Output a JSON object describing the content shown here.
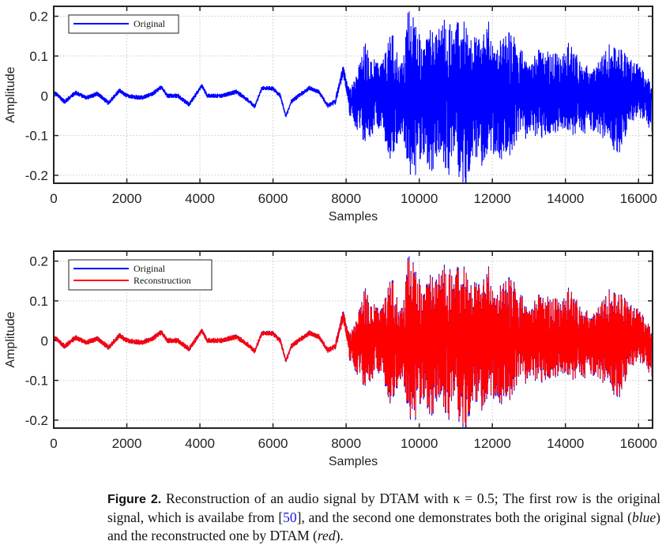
{
  "chart_data": [
    {
      "type": "line",
      "xlabel": "Samples",
      "ylabel": "Amplitude",
      "xlim": [
        0,
        16384
      ],
      "ylim": [
        -0.22,
        0.225
      ],
      "xticks": [
        0,
        2000,
        4000,
        6000,
        8000,
        10000,
        12000,
        14000,
        16000
      ],
      "xtick_labels": [
        "0",
        "2000",
        "4000",
        "6000",
        "8000",
        "10000",
        "12000",
        "14000",
        "16000"
      ],
      "yticks": [
        -0.2,
        -0.1,
        0,
        0.1,
        0.2
      ],
      "ytick_labels": [
        "-0.2",
        "-0.1",
        "0",
        "0.1",
        "0.2"
      ],
      "grid": true,
      "legend_placement": "top-left",
      "series": [
        {
          "name": "Original",
          "color": "#0000ff"
        }
      ]
    },
    {
      "type": "line",
      "xlabel": "Samples",
      "ylabel": "Amplitude",
      "xlim": [
        0,
        16384
      ],
      "ylim": [
        -0.22,
        0.225
      ],
      "xticks": [
        0,
        2000,
        4000,
        6000,
        8000,
        10000,
        12000,
        14000,
        16000
      ],
      "xtick_labels": [
        "0",
        "2000",
        "4000",
        "6000",
        "8000",
        "10000",
        "12000",
        "14000",
        "16000"
      ],
      "yticks": [
        -0.2,
        -0.1,
        0,
        0.1,
        0.2
      ],
      "ytick_labels": [
        "-0.2",
        "-0.1",
        "0",
        "0.1",
        "0.2"
      ],
      "grid": true,
      "legend_placement": "top-left",
      "series": [
        {
          "name": "Original",
          "color": "#0000ff"
        },
        {
          "name": "Reconstruction",
          "color": "#ff0000"
        }
      ]
    }
  ],
  "signal_shape": {
    "trend": [
      [
        0,
        0.01
      ],
      [
        300,
        -0.015
      ],
      [
        600,
        0.008
      ],
      [
        900,
        -0.005
      ],
      [
        1200,
        0.005
      ],
      [
        1500,
        -0.018
      ],
      [
        1800,
        0.013
      ],
      [
        2000,
        0.0
      ],
      [
        2400,
        -0.005
      ],
      [
        2700,
        0.005
      ],
      [
        2950,
        0.022
      ],
      [
        3100,
        0.0
      ],
      [
        3400,
        0.0
      ],
      [
        3700,
        -0.022
      ],
      [
        4000,
        0.018
      ],
      [
        4050,
        0.026
      ],
      [
        4200,
        0.0
      ],
      [
        4600,
        0.0
      ],
      [
        5000,
        0.01
      ],
      [
        5300,
        -0.01
      ],
      [
        5500,
        -0.028
      ],
      [
        5700,
        0.02
      ],
      [
        6000,
        0.018
      ],
      [
        6200,
        0.0
      ],
      [
        6350,
        -0.052
      ],
      [
        6500,
        -0.015
      ],
      [
        6700,
        0.0
      ],
      [
        7000,
        0.02
      ],
      [
        7250,
        0.01
      ],
      [
        7500,
        -0.025
      ],
      [
        7700,
        -0.015
      ],
      [
        7920,
        0.065
      ],
      [
        8100,
        -0.01
      ],
      [
        8300,
        0.0
      ],
      [
        16384,
        0.0
      ]
    ],
    "upper": [
      [
        0,
        0.006
      ],
      [
        7600,
        0.006
      ],
      [
        7800,
        0.012
      ],
      [
        8000,
        0.015
      ],
      [
        8200,
        0.04
      ],
      [
        8500,
        0.14
      ],
      [
        8700,
        0.1
      ],
      [
        9000,
        0.09
      ],
      [
        9200,
        0.17
      ],
      [
        9400,
        0.13
      ],
      [
        9550,
        0.08
      ],
      [
        9700,
        0.22
      ],
      [
        9900,
        0.2
      ],
      [
        10100,
        0.12
      ],
      [
        10300,
        0.18
      ],
      [
        10500,
        0.16
      ],
      [
        10800,
        0.22
      ],
      [
        11000,
        0.16
      ],
      [
        11100,
        0.22
      ],
      [
        11300,
        0.17
      ],
      [
        11500,
        0.15
      ],
      [
        11700,
        0.14
      ],
      [
        11900,
        0.19
      ],
      [
        12100,
        0.12
      ],
      [
        12400,
        0.17
      ],
      [
        12700,
        0.14
      ],
      [
        13000,
        0.08
      ],
      [
        13300,
        0.12
      ],
      [
        13600,
        0.11
      ],
      [
        14000,
        0.11
      ],
      [
        14100,
        0.15
      ],
      [
        14400,
        0.09
      ],
      [
        14800,
        0.07
      ],
      [
        15200,
        0.13
      ],
      [
        15500,
        0.12
      ],
      [
        15700,
        0.1
      ],
      [
        16000,
        0.08
      ],
      [
        16384,
        0.03
      ]
    ],
    "lower": [
      [
        0,
        -0.006
      ],
      [
        7600,
        -0.006
      ],
      [
        7800,
        -0.012
      ],
      [
        8000,
        -0.02
      ],
      [
        8200,
        -0.07
      ],
      [
        8500,
        -0.12
      ],
      [
        8700,
        -0.1
      ],
      [
        9000,
        -0.08
      ],
      [
        9200,
        -0.18
      ],
      [
        9400,
        -0.12
      ],
      [
        9550,
        -0.09
      ],
      [
        9700,
        -0.2
      ],
      [
        9900,
        -0.2
      ],
      [
        10100,
        -0.15
      ],
      [
        10300,
        -0.2
      ],
      [
        10500,
        -0.16
      ],
      [
        10800,
        -0.21
      ],
      [
        11000,
        -0.12
      ],
      [
        11100,
        -0.22
      ],
      [
        11300,
        -0.22
      ],
      [
        11500,
        -0.15
      ],
      [
        11700,
        -0.18
      ],
      [
        11900,
        -0.17
      ],
      [
        12100,
        -0.15
      ],
      [
        12400,
        -0.17
      ],
      [
        12700,
        -0.11
      ],
      [
        13000,
        -0.11
      ],
      [
        13300,
        -0.11
      ],
      [
        13600,
        -0.1
      ],
      [
        14000,
        -0.08
      ],
      [
        14100,
        -0.1
      ],
      [
        14400,
        -0.1
      ],
      [
        14800,
        -0.09
      ],
      [
        15200,
        -0.12
      ],
      [
        15500,
        -0.16
      ],
      [
        15700,
        -0.08
      ],
      [
        16000,
        -0.05
      ],
      [
        16384,
        -0.1
      ]
    ]
  },
  "caption": {
    "label": "Figure 2.",
    "text_1": " Reconstruction of an audio signal by DTAM with κ = 0.5; The first row is the original signal, which is availabe from [",
    "ref": "50",
    "text_2": "], and the second one demonstrates both the original signal (",
    "blue": "blue",
    "text_3": ") and the reconstructed one by DTAM (",
    "red": "red",
    "text_4": ")."
  }
}
